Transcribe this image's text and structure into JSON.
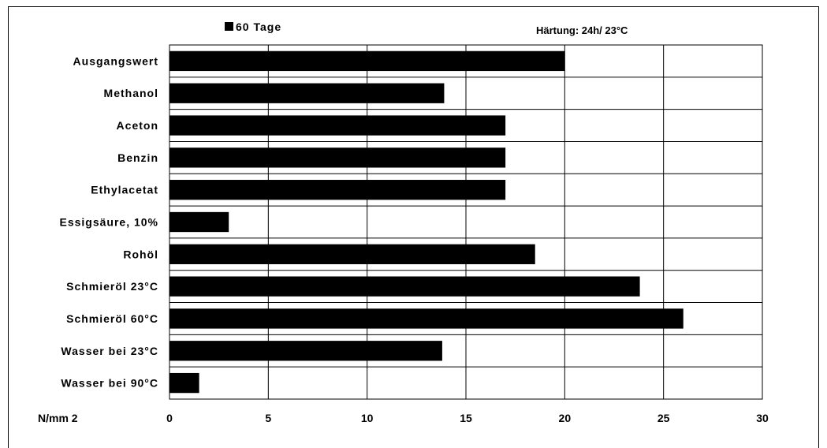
{
  "chart_data": {
    "type": "bar",
    "orientation": "horizontal",
    "categories": [
      "Ausgangswert",
      "Methanol",
      "Aceton",
      "Benzin",
      "Ethylacetat",
      "Essigsäure, 10%",
      "Rohöl",
      "Schmieröl 23°C",
      "Schmieröl 60°C",
      "Wasser bei 23°C",
      "Wasser bei 90°C"
    ],
    "series": [
      {
        "name": "60 Tage",
        "values": [
          20,
          13.9,
          17,
          17,
          17,
          3,
          18.5,
          23.8,
          26,
          13.8,
          1.5
        ]
      }
    ],
    "xlim": [
      0,
      30
    ],
    "xticks": [
      "0",
      "5",
      "10",
      "15",
      "20",
      "25",
      "30"
    ],
    "xunit": "N/mm 2",
    "annotation": "Härtung: 24h/ 23°C",
    "grid": true,
    "legend_position": "top-left",
    "bar_color": "#000000"
  }
}
